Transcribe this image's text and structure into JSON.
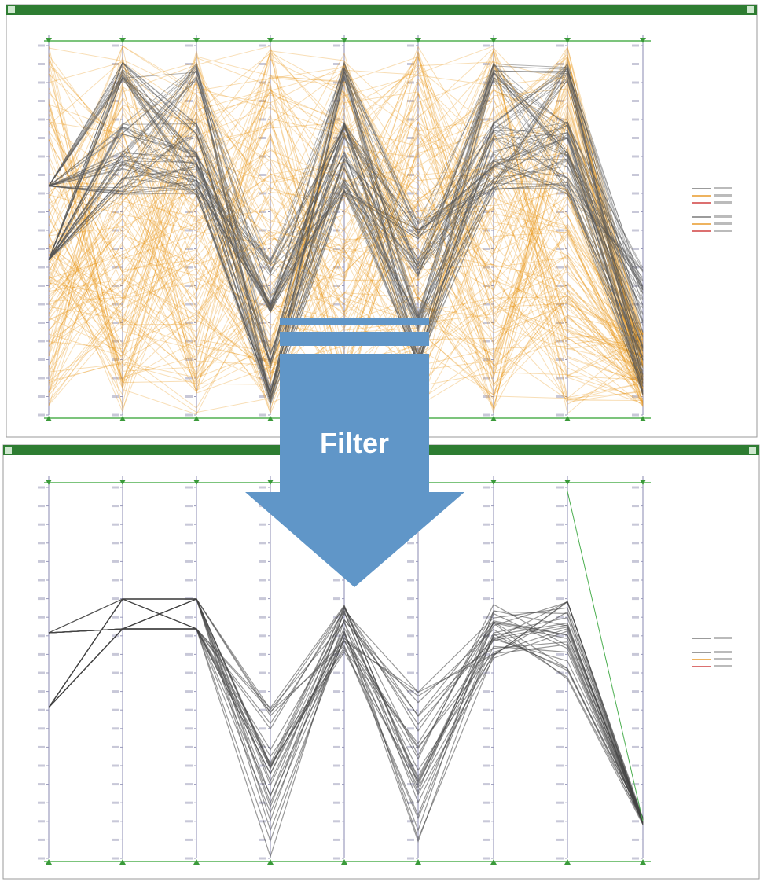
{
  "arrow": {
    "label": "Filter"
  }
}
